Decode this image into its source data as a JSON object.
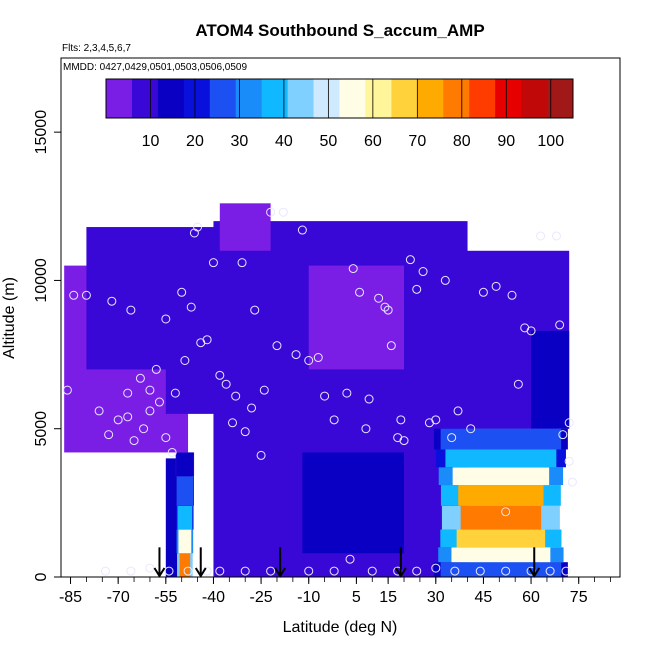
{
  "chart_data": {
    "type": "heatmap",
    "title": "ATOM4 Southbound S_accum_AMP",
    "subtitle_flights": "Flts: 2,3,4,5,6,7",
    "subtitle_dates": "MMDD: 0427,0429,0501,0503,0506,0509",
    "xlabel": "Latitude (deg N)",
    "ylabel": "Altitude (m)",
    "xlim": [
      -88,
      88
    ],
    "ylim": [
      0,
      17500
    ],
    "x_ticks": [
      -85,
      -70,
      -55,
      -40,
      -25,
      -10,
      5,
      15,
      30,
      45,
      60,
      75
    ],
    "x_tick_labels": [
      "-85",
      "-70",
      "-55",
      "-40",
      "-25",
      "-10",
      "5",
      "15",
      "30",
      "45",
      "60",
      "75"
    ],
    "y_ticks": [
      0,
      5000,
      10000,
      15000
    ],
    "y_tick_labels": [
      "0",
      "5000",
      "10000",
      "15000"
    ],
    "colorbar": {
      "min": 0,
      "max": 105,
      "ticks": [
        10,
        20,
        30,
        40,
        50,
        60,
        70,
        80,
        90,
        100
      ],
      "tick_labels": [
        "10",
        "20",
        "30",
        "40",
        "50",
        "60",
        "70",
        "80",
        "90",
        "100"
      ],
      "colors": [
        "#7a1ee6",
        "#3a08d6",
        "#0a00c4",
        "#0a10dc",
        "#1c50f2",
        "#1a8cfa",
        "#10b8ff",
        "#7fd0ff",
        "#cfeaff",
        "#fffde6",
        "#fff59a",
        "#ffd23c",
        "#ffaa00",
        "#ff7a00",
        "#ff3c00",
        "#e60000",
        "#c00808",
        "#a01818"
      ]
    },
    "regions": [
      {
        "lat_min": -87,
        "lat_max": -48,
        "alt_min": 4200,
        "alt_max": 10500,
        "value": 3
      },
      {
        "lat_min": -80,
        "lat_max": -28,
        "alt_min": 7000,
        "alt_max": 11800,
        "value": 6
      },
      {
        "lat_min": -40,
        "lat_max": 40,
        "alt_min": 0,
        "alt_max": 12000,
        "value": 11
      },
      {
        "lat_min": -55,
        "lat_max": -5,
        "alt_min": 5500,
        "alt_max": 10500,
        "value": 7
      },
      {
        "lat_min": -10,
        "lat_max": 20,
        "alt_min": 7000,
        "alt_max": 10500,
        "value": 5
      },
      {
        "lat_min": -38,
        "lat_max": -22,
        "alt_min": 11000,
        "alt_max": 12600,
        "value": 5
      },
      {
        "lat_min": -12,
        "lat_max": 20,
        "alt_min": 800,
        "alt_max": 4200,
        "value": 14
      },
      {
        "lat_min": 35,
        "lat_max": 72,
        "alt_min": 5000,
        "alt_max": 11000,
        "value": 8
      },
      {
        "lat_min": 60,
        "lat_max": 72,
        "alt_min": 5000,
        "alt_max": 8300,
        "value": 16
      },
      {
        "lat_min": -55,
        "lat_max": -47,
        "alt_min": 0,
        "alt_max": 4000,
        "value": 14
      }
    ],
    "plume_profiles": [
      {
        "name": "southern",
        "lat_min": -52,
        "lat_max": -46,
        "layers": [
          {
            "alt_min": 0,
            "alt_max": 800,
            "value": 80
          },
          {
            "alt_min": 800,
            "alt_max": 1600,
            "value": 58
          },
          {
            "alt_min": 1600,
            "alt_max": 2400,
            "value": 40
          },
          {
            "alt_min": 2400,
            "alt_max": 3400,
            "value": 24
          },
          {
            "alt_min": 3400,
            "alt_max": 4200,
            "value": 16
          }
        ]
      },
      {
        "name": "northern",
        "lat_min": 28,
        "lat_max": 73,
        "layers": [
          {
            "alt_min": 0,
            "alt_max": 500,
            "value": 28
          },
          {
            "alt_min": 500,
            "alt_max": 1000,
            "value": 55
          },
          {
            "alt_min": 1000,
            "alt_max": 1600,
            "value": 68
          },
          {
            "alt_min": 1600,
            "alt_max": 2400,
            "value": 78
          },
          {
            "alt_min": 2400,
            "alt_max": 3100,
            "value": 72
          },
          {
            "alt_min": 3100,
            "alt_max": 3700,
            "value": 58
          },
          {
            "alt_min": 3700,
            "alt_max": 4300,
            "value": 40
          },
          {
            "alt_min": 4300,
            "alt_max": 5000,
            "value": 28
          }
        ]
      }
    ],
    "samples": [
      [
        -86,
        6300
      ],
      [
        -84,
        9500
      ],
      [
        -80,
        9500
      ],
      [
        -76,
        5600
      ],
      [
        -73,
        4800
      ],
      [
        -72,
        9300
      ],
      [
        -70,
        5300
      ],
      [
        -67,
        6200
      ],
      [
        -67,
        5400
      ],
      [
        -66,
        9000
      ],
      [
        -65,
        4600
      ],
      [
        -62,
        5000
      ],
      [
        -63,
        6700
      ],
      [
        -60,
        5600
      ],
      [
        -60,
        6300
      ],
      [
        -58,
        7000
      ],
      [
        -57,
        5900
      ],
      [
        -55,
        4700
      ],
      [
        -55,
        8700
      ],
      [
        -53,
        4200
      ],
      [
        -52,
        6200
      ],
      [
        -50,
        9600
      ],
      [
        -49,
        7300
      ],
      [
        -47,
        9100
      ],
      [
        -46,
        11600
      ],
      [
        -45,
        11800
      ],
      [
        -44,
        7900
      ],
      [
        -42,
        8000
      ],
      [
        -40,
        10600
      ],
      [
        -38,
        6800
      ],
      [
        -36,
        6500
      ],
      [
        -34,
        5200
      ],
      [
        -33,
        6100
      ],
      [
        -31,
        10600
      ],
      [
        -30,
        4900
      ],
      [
        -28,
        5700
      ],
      [
        -27,
        9000
      ],
      [
        -25,
        4100
      ],
      [
        -24,
        6300
      ],
      [
        -22,
        12300
      ],
      [
        -20,
        7800
      ],
      [
        -18,
        12300
      ],
      [
        -14,
        7500
      ],
      [
        -12,
        11700
      ],
      [
        -10,
        7300
      ],
      [
        -7,
        7400
      ],
      [
        -5,
        6100
      ],
      [
        -2,
        5300
      ],
      [
        2,
        6200
      ],
      [
        4,
        10400
      ],
      [
        6,
        9600
      ],
      [
        8,
        5000
      ],
      [
        9,
        6000
      ],
      [
        12,
        9400
      ],
      [
        14,
        9100
      ],
      [
        15,
        9000
      ],
      [
        16,
        7800
      ],
      [
        18,
        4700
      ],
      [
        19,
        5300
      ],
      [
        20,
        4600
      ],
      [
        22,
        10700
      ],
      [
        24,
        9700
      ],
      [
        26,
        10300
      ],
      [
        28,
        5200
      ],
      [
        30,
        5300
      ],
      [
        33,
        10000
      ],
      [
        35,
        4700
      ],
      [
        37,
        5600
      ],
      [
        41,
        5000
      ],
      [
        45,
        9600
      ],
      [
        49,
        9800
      ],
      [
        54,
        9500
      ],
      [
        56,
        6500
      ],
      [
        58,
        8400
      ],
      [
        60,
        8300
      ],
      [
        63,
        11500
      ],
      [
        68,
        11500
      ],
      [
        69,
        8500
      ],
      [
        70,
        4800
      ],
      [
        72,
        5200
      ],
      [
        72,
        3900
      ],
      [
        73,
        3200
      ],
      [
        52,
        2200
      ],
      [
        -74,
        200
      ],
      [
        -66,
        200
      ],
      [
        -60,
        300
      ],
      [
        -54,
        200
      ],
      [
        -48,
        200
      ],
      [
        -42,
        200
      ],
      [
        -38,
        200
      ],
      [
        -30,
        200
      ],
      [
        -22,
        200
      ],
      [
        -10,
        200
      ],
      [
        -2,
        200
      ],
      [
        3,
        600
      ],
      [
        10,
        200
      ],
      [
        18,
        200
      ],
      [
        24,
        200
      ],
      [
        30,
        300
      ],
      [
        36,
        200
      ],
      [
        44,
        200
      ],
      [
        52,
        200
      ],
      [
        60,
        200
      ],
      [
        66,
        200
      ],
      [
        71,
        200
      ]
    ],
    "flight_arrows_lat": [
      -57,
      -44,
      -19,
      19,
      61
    ]
  }
}
